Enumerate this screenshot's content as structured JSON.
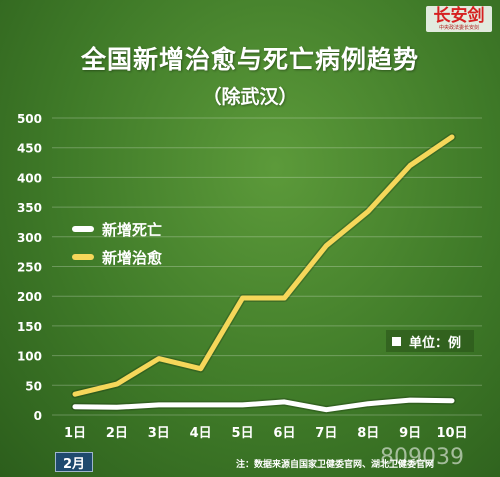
{
  "logo": {
    "text": "长安剑",
    "sub": "中央政法委长安剑"
  },
  "header": {
    "title": "全国新增治愈与死亡病例趋势",
    "subtitle": "（除武汉）"
  },
  "legend": {
    "deaths_label": "新增死亡",
    "cured_label": "新增治愈"
  },
  "unit_label": "单位：例",
  "month_label": "2月",
  "source_note": "注：数据来源自国家卫健委官网、湖北卫健委官网",
  "watermark": "809039",
  "colors": {
    "deaths": "#ffffff",
    "cured": "#f6d75a",
    "background": "#3f7a28"
  },
  "chart_data": {
    "type": "line",
    "categories": [
      "1日",
      "2日",
      "3日",
      "4日",
      "5日",
      "6日",
      "7日",
      "8日",
      "9日",
      "10日"
    ],
    "series": [
      {
        "name": "新增死亡",
        "values": [
          14,
          13,
          17,
          17,
          17,
          22,
          9,
          19,
          25,
          24
        ]
      },
      {
        "name": "新增治愈",
        "values": [
          35,
          52,
          95,
          78,
          197,
          197,
          285,
          343,
          420,
          468
        ]
      }
    ],
    "ylim": [
      0,
      500
    ],
    "yticks": [
      0,
      50,
      100,
      150,
      200,
      250,
      300,
      350,
      400,
      450,
      500
    ],
    "grid": true,
    "legend_position": "middle-left"
  }
}
